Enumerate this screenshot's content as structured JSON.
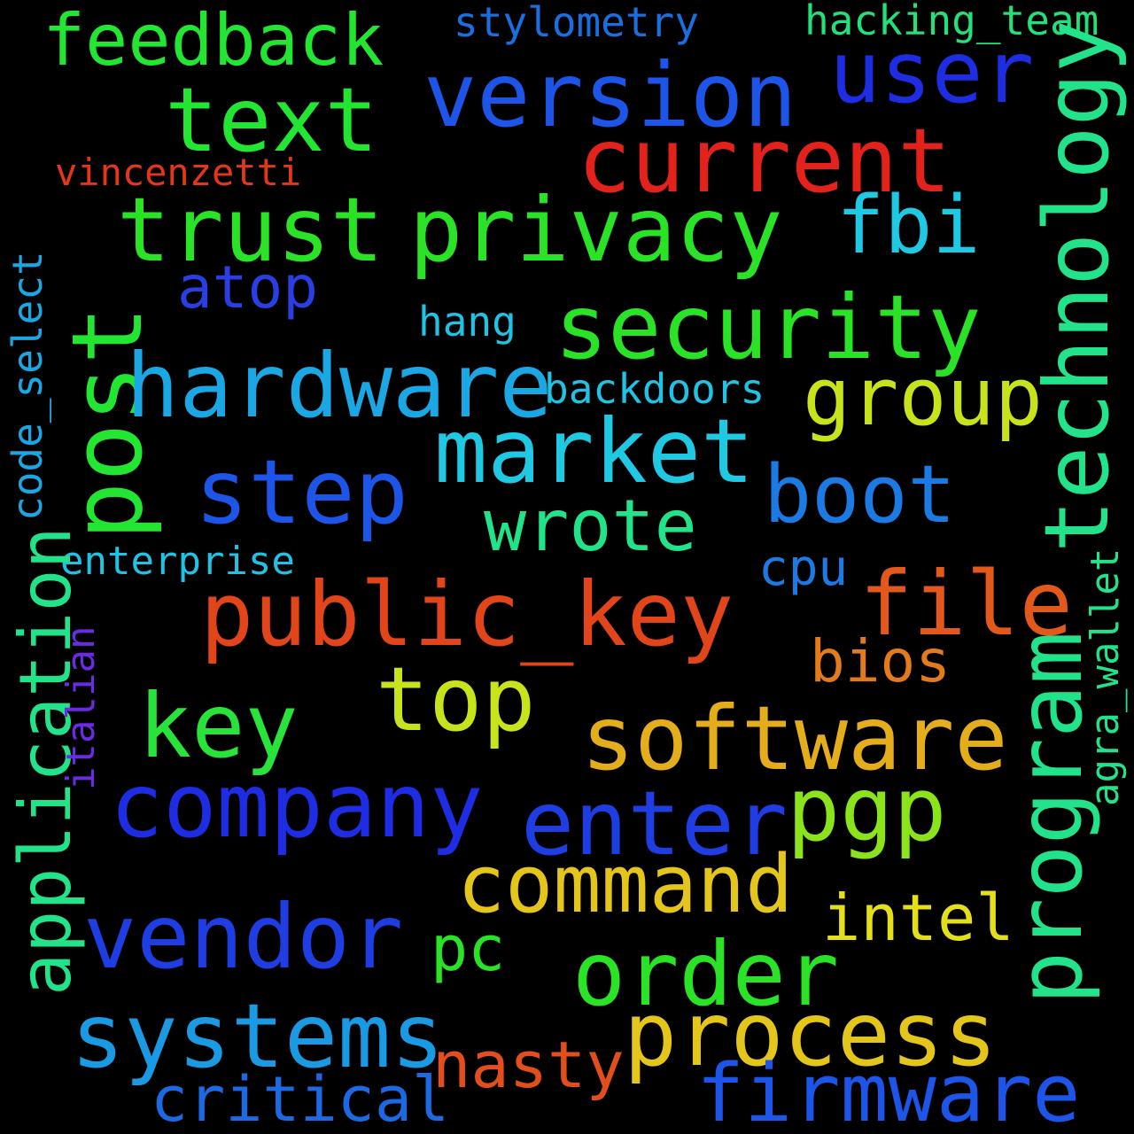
{
  "words": [
    {
      "text": "feedback",
      "color": "#22e632"
    },
    {
      "text": "stylometry",
      "color": "#1a6fe0"
    },
    {
      "text": "hacking_team",
      "color": "#22e07a"
    },
    {
      "text": "user",
      "color": "#1e2de3"
    },
    {
      "text": "version",
      "color": "#1c55e8"
    },
    {
      "text": "text",
      "color": "#22e632"
    },
    {
      "text": "current",
      "color": "#e3221b"
    },
    {
      "text": "vincenzetti",
      "color": "#e3361b"
    },
    {
      "text": "technology",
      "color": "#22e38a"
    },
    {
      "text": "trust",
      "color": "#2ae327"
    },
    {
      "text": "privacy",
      "color": "#2ae327"
    },
    {
      "text": "fbi",
      "color": "#1fc9e3"
    },
    {
      "text": "code_select",
      "color": "#1aa7e3"
    },
    {
      "text": "atop",
      "color": "#2a3fe3"
    },
    {
      "text": "hang",
      "color": "#20c3e3"
    },
    {
      "text": "security",
      "color": "#2ae327"
    },
    {
      "text": "post",
      "color": "#22e632"
    },
    {
      "text": "hardware",
      "color": "#1aa7e3"
    },
    {
      "text": "backdoors",
      "color": "#20c3e3"
    },
    {
      "text": "group",
      "color": "#c8e31b"
    },
    {
      "text": "market",
      "color": "#1fc9e3"
    },
    {
      "text": "step",
      "color": "#1c55e8"
    },
    {
      "text": "boot",
      "color": "#1c7ae3"
    },
    {
      "text": "wrote",
      "color": "#22e38a"
    },
    {
      "text": "enterprise",
      "color": "#20c3e3"
    },
    {
      "text": "cpu",
      "color": "#1c7ae3"
    },
    {
      "text": "file",
      "color": "#e3581b"
    },
    {
      "text": "public_key",
      "color": "#e3451b"
    },
    {
      "text": "agra_wallet",
      "color": "#22e38a"
    },
    {
      "text": "application",
      "color": "#22e38a"
    },
    {
      "text": "italian",
      "color": "#6a2be3"
    },
    {
      "text": "bios",
      "color": "#e37a1b"
    },
    {
      "text": "top",
      "color": "#c8e31b"
    },
    {
      "text": "key",
      "color": "#2ae33a"
    },
    {
      "text": "software",
      "color": "#e3ad1b"
    },
    {
      "text": "program",
      "color": "#22e38a"
    },
    {
      "text": "company",
      "color": "#1e2de3"
    },
    {
      "text": "enter",
      "color": "#1e3de3"
    },
    {
      "text": "pgp",
      "color": "#8ae31b"
    },
    {
      "text": "command",
      "color": "#e3c51b"
    },
    {
      "text": "intel",
      "color": "#e3e01b"
    },
    {
      "text": "vendor",
      "color": "#1e3de3"
    },
    {
      "text": "pc",
      "color": "#2ae327"
    },
    {
      "text": "order",
      "color": "#2ae327"
    },
    {
      "text": "systems",
      "color": "#1a9ae3"
    },
    {
      "text": "process",
      "color": "#e3c51b"
    },
    {
      "text": "nasty",
      "color": "#e34e1b"
    },
    {
      "text": "critical",
      "color": "#1c6ae3"
    },
    {
      "text": "firmware",
      "color": "#1c55e8"
    }
  ]
}
